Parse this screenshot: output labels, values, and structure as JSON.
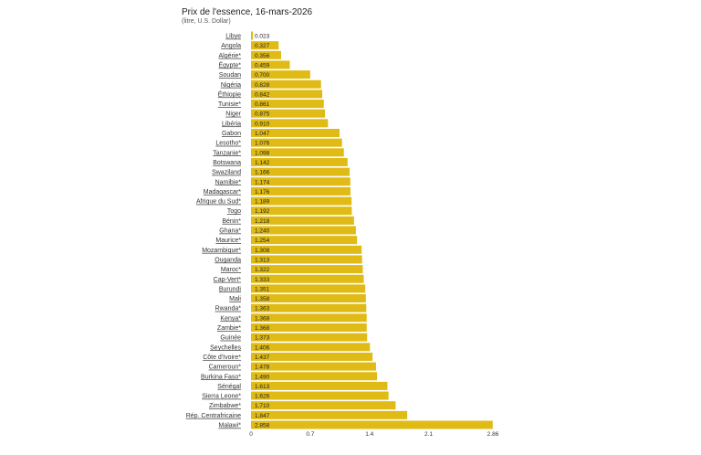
{
  "chart_data": {
    "type": "bar",
    "orientation": "horizontal",
    "title": "Prix de l'essence, 16-mars-2026",
    "subtitle": "(litre, U.S. Dollar)",
    "xlim": [
      0,
      2.86
    ],
    "xticks": [
      "0",
      "0.7",
      "1.4",
      "2.1",
      "2.86"
    ],
    "xtick_values": [
      0,
      0.7,
      1.4,
      2.1,
      2.86
    ],
    "bar_color": "#e0bb16",
    "categories": [
      "Libye",
      "Angola",
      "Algérie*",
      "Égypte*",
      "Soudan",
      "Nigéria",
      "Éthiopie",
      "Tunisie*",
      "Niger",
      "Libéria",
      "Gabon",
      "Lesotho*",
      "Tanzanie*",
      "Botswana",
      "Swaziland",
      "Namibie*",
      "Madagascar*",
      "Afrique du Sud*",
      "Togo",
      "Bénin*",
      "Ghana*",
      "Maurice*",
      "Mozambique*",
      "Ouganda",
      "Maroc*",
      "Cap-Vert*",
      "Burundi",
      "Mali",
      "Rwanda*",
      "Kenya*",
      "Zambie*",
      "Guinée",
      "Seychelles",
      "Côte d'Ivoire*",
      "Cameroun*",
      "Burkina Faso*",
      "Sénégal",
      "Sierra Leone*",
      "Zimbabwe*",
      "Rép. Centrafricaine",
      "Malawi*"
    ],
    "values": [
      0.023,
      0.327,
      0.356,
      0.459,
      0.7,
      0.828,
      0.842,
      0.861,
      0.875,
      0.91,
      1.047,
      1.076,
      1.098,
      1.142,
      1.166,
      1.174,
      1.176,
      1.189,
      1.192,
      1.218,
      1.24,
      1.254,
      1.308,
      1.313,
      1.322,
      1.333,
      1.351,
      1.358,
      1.363,
      1.368,
      1.368,
      1.373,
      1.406,
      1.437,
      1.478,
      1.49,
      1.613,
      1.626,
      1.71,
      1.847,
      2.858
    ],
    "value_labels": [
      "0.023",
      "0.327",
      "0.356",
      "0.459",
      "0.700",
      "0.828",
      "0.842",
      "0.861",
      "0.875",
      "0.910",
      "1.047",
      "1.076",
      "1.098",
      "1.142",
      "1.166",
      "1.174",
      "1.176",
      "1.189",
      "1.192",
      "1.218",
      "1.240",
      "1.254",
      "1.308",
      "1.313",
      "1.322",
      "1.333",
      "1.351",
      "1.358",
      "1.363",
      "1.368",
      "1.368",
      "1.373",
      "1.406",
      "1.437",
      "1.478",
      "1.490",
      "1.613",
      "1.626",
      "1.710",
      "1.847",
      "2.858"
    ]
  }
}
